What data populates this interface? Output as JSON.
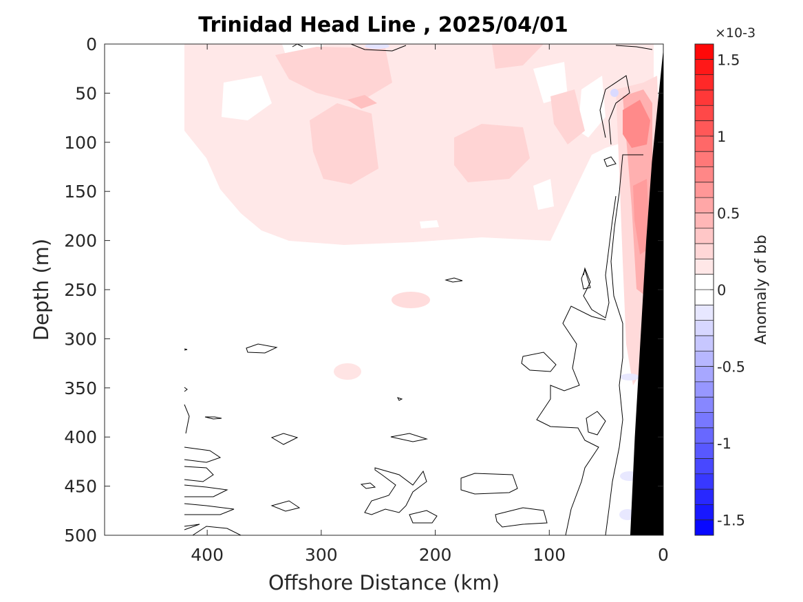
{
  "chart_data": {
    "type": "heatmap",
    "subtype": "filled-contour",
    "title": "Trinidad Head Line , 2025/04/01",
    "xlabel": "Offshore Distance (km)",
    "ylabel": "Depth (m)",
    "colorbar_label": "Anomaly of bb",
    "colorbar_exponent": "×10-3",
    "xlim": [
      490,
      0
    ],
    "x_reversed": true,
    "ylim": [
      0,
      500
    ],
    "y_reversed": true,
    "x_ticks": [
      400,
      300,
      200,
      100,
      0
    ],
    "y_ticks": [
      0,
      50,
      100,
      150,
      200,
      250,
      300,
      350,
      400,
      450,
      500
    ],
    "clim": [
      -1.6,
      1.6
    ],
    "colorbar_levels": 32,
    "colorbar_ticks": [
      1.5,
      1,
      0.5,
      0,
      -0.5,
      -1,
      -1.5
    ],
    "colormap": {
      "negative": "#0000ff",
      "zero": "#ffffff",
      "positive": "#ff0000"
    },
    "data_extent_km": [
      420,
      0
    ],
    "bathymetry": {
      "color": "#000000",
      "shelf_edge": [
        [
          0,
          5
        ],
        [
          10,
          120
        ],
        [
          15,
          200
        ],
        [
          20,
          300
        ],
        [
          25,
          400
        ],
        [
          29,
          500
        ]
      ]
    },
    "regions": [
      {
        "label": "upper positive layer",
        "x_range": [
          420,
          5
        ],
        "depth_range": [
          0,
          215
        ],
        "value": 0.12
      },
      {
        "label": "patch near 290 km",
        "x_range": [
          330,
          220
        ],
        "depth_range": [
          15,
          45
        ],
        "value": 0.2
      },
      {
        "label": "patch near 260 km",
        "x_range": [
          285,
          235
        ],
        "depth_range": [
          50,
          70
        ],
        "value": 0.35
      },
      {
        "label": "patch near 270 km",
        "x_range": [
          305,
          220
        ],
        "depth_range": [
          80,
          140
        ],
        "value": 0.2
      },
      {
        "label": "patch near 140 km",
        "x_range": [
          185,
          100
        ],
        "depth_range": [
          80,
          140
        ],
        "value": 0.18
      },
      {
        "label": "nearshore maximum",
        "x_range": [
          35,
          10
        ],
        "depth_range": [
          40,
          120
        ],
        "value": 0.8
      },
      {
        "label": "nearshore column",
        "x_range": [
          30,
          8
        ],
        "depth_range": [
          140,
          330
        ],
        "value": 0.5
      },
      {
        "label": "small patch 220 km",
        "x_range": [
          240,
          205
        ],
        "depth_range": [
          250,
          270
        ],
        "value": 0.2
      },
      {
        "label": "small patch 320 km",
        "x_range": [
          335,
          310
        ],
        "depth_range": [
          325,
          340
        ],
        "value": 0.15
      },
      {
        "label": "negative patch near 30 km",
        "x_range": [
          40,
          25
        ],
        "depth_range": [
          445,
          460
        ],
        "value": -0.08
      }
    ]
  }
}
